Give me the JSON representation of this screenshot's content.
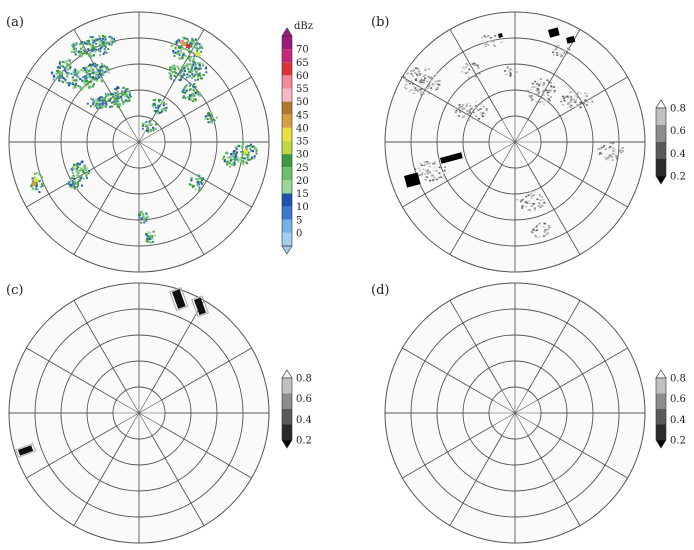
{
  "panels": [
    {
      "id": "a",
      "label": "(a)"
    },
    {
      "id": "b",
      "label": "(b)"
    },
    {
      "id": "c",
      "label": "(c)"
    },
    {
      "id": "d",
      "label": "(d)"
    }
  ],
  "reflectivity_colorbar": {
    "unit": "dBz",
    "ticks": [
      "70",
      "65",
      "60",
      "55",
      "50",
      "45",
      "40",
      "35",
      "30",
      "25",
      "20",
      "15",
      "10",
      "5",
      "0"
    ],
    "colors": [
      "#9a1a7e",
      "#c8287a",
      "#e0303a",
      "#f08a9a",
      "#f4b8c4",
      "#b07a30",
      "#d6a040",
      "#e6e040",
      "#c0d840",
      "#3c9a3c",
      "#6cc06c",
      "#9ad89a",
      "#2050b0",
      "#3c78d0",
      "#7ab0e8",
      "#a0d0f0"
    ]
  },
  "probability_colorbar": {
    "ticks": [
      "0.8",
      "0.6",
      "0.4",
      "0.2"
    ],
    "colors": [
      "#f2f2f2",
      "#c0c0c0",
      "#8c8c8c",
      "#5a5a5a",
      "#2a2a2a",
      "#000000"
    ]
  },
  "colors": {
    "grid": "#555555",
    "disk": "#fafafa"
  }
}
